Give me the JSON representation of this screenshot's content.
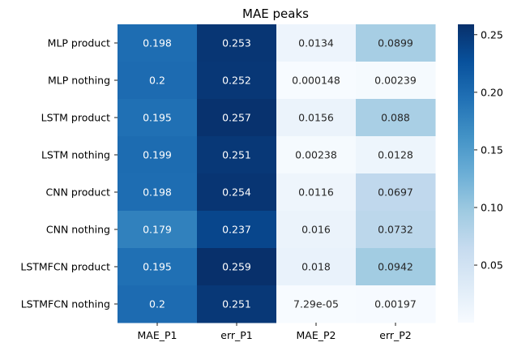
{
  "chart_data": {
    "type": "heatmap",
    "title": "MAE peaks",
    "rows": [
      "MLP product",
      "MLP nothing",
      "LSTM product",
      "LSTM nothing",
      "CNN product",
      "CNN nothing",
      "LSTMFCN product",
      "LSTMFCN nothing"
    ],
    "columns": [
      "MAE_P1",
      "err_P1",
      "MAE_P2",
      "err_P2"
    ],
    "values": [
      [
        0.198,
        0.253,
        0.0134,
        0.0899
      ],
      [
        0.2,
        0.252,
        0.000148,
        0.00239
      ],
      [
        0.195,
        0.257,
        0.0156,
        0.088
      ],
      [
        0.199,
        0.251,
        0.00238,
        0.0128
      ],
      [
        0.198,
        0.254,
        0.0116,
        0.0697
      ],
      [
        0.179,
        0.237,
        0.016,
        0.0732
      ],
      [
        0.195,
        0.259,
        0.018,
        0.0942
      ],
      [
        0.2,
        0.251,
        7.29e-05,
        0.00197
      ]
    ],
    "annotations": [
      [
        "0.198",
        "0.253",
        "0.0134",
        "0.0899"
      ],
      [
        "0.2",
        "0.252",
        "0.000148",
        "0.00239"
      ],
      [
        "0.195",
        "0.257",
        "0.0156",
        "0.088"
      ],
      [
        "0.199",
        "0.251",
        "0.00238",
        "0.0128"
      ],
      [
        "0.198",
        "0.254",
        "0.0116",
        "0.0697"
      ],
      [
        "0.179",
        "0.237",
        "0.016",
        "0.0732"
      ],
      [
        "0.195",
        "0.259",
        "0.018",
        "0.0942"
      ],
      [
        "0.2",
        "0.251",
        "7.29e-05",
        "0.00197"
      ]
    ],
    "colormap": "Blues",
    "vmin": 7.29e-05,
    "vmax": 0.259,
    "colorbar": {
      "ticks": [
        0.05,
        0.1,
        0.15,
        0.2,
        0.25
      ],
      "tick_labels": [
        "0.05",
        "0.10",
        "0.15",
        "0.20",
        "0.25"
      ],
      "placement": "right"
    }
  }
}
